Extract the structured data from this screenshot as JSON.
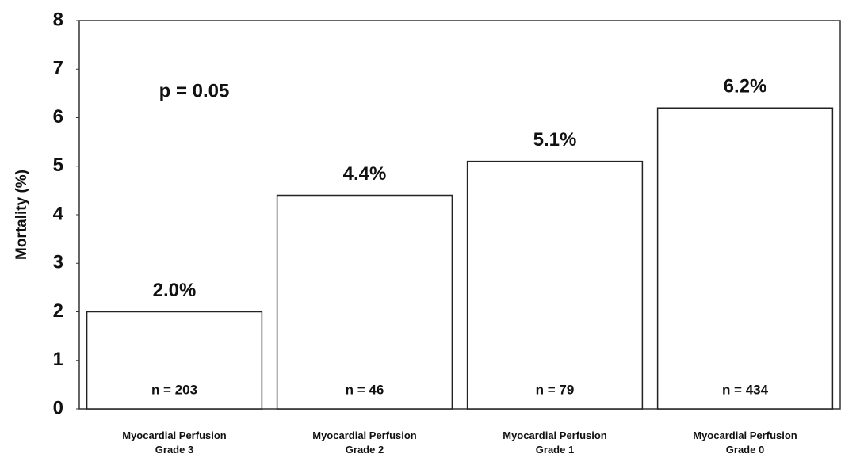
{
  "chart_data": {
    "type": "bar",
    "y_label": "Mortality (%)",
    "categories": [
      "Myocardial Perfusion Grade 3",
      "Myocardial Perfusion Grade 2",
      "Myocardial Perfusion Grade 1",
      "Myocardial Perfusion Grade 0"
    ],
    "values": [
      2.0,
      4.4,
      5.1,
      6.2
    ],
    "value_labels": [
      "2.0%",
      "4.4%",
      "5.1%",
      "6.2%"
    ],
    "n_labels": [
      "n = 203",
      "n = 46",
      "n = 79",
      "n = 434"
    ],
    "annotation": "p = 0.05",
    "color": "#ffffff",
    "edge_color": "#222222",
    "ylim": [
      0,
      8
    ],
    "yticks": [
      0,
      1,
      2,
      3,
      4,
      5,
      6,
      7,
      8
    ],
    "grid": false
  }
}
